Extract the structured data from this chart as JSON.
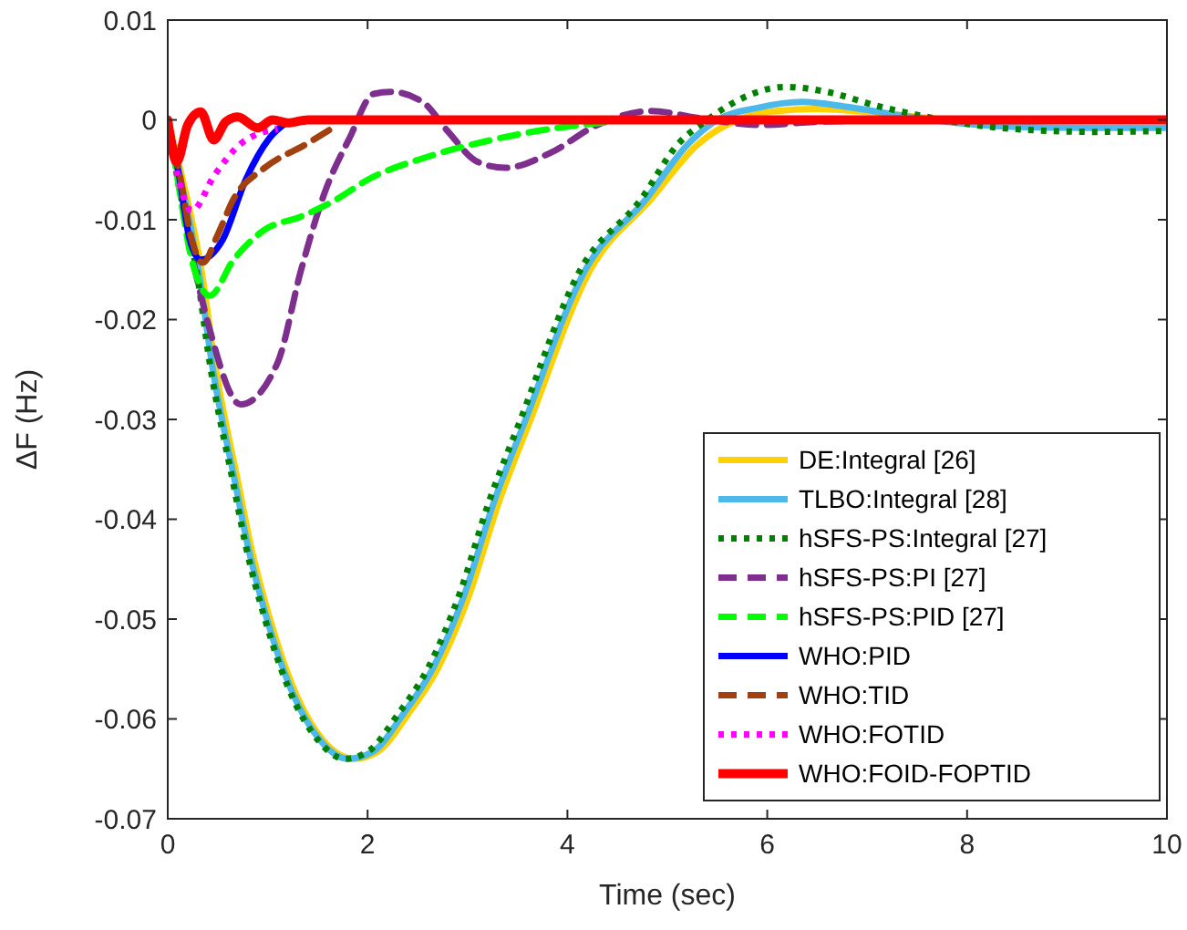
{
  "chart_data": {
    "type": "line",
    "xlabel": "Time (sec)",
    "ylabel": "ΔF (Hz)",
    "xlim": [
      0,
      10
    ],
    "ylim": [
      -0.07,
      0.01
    ],
    "xticks": [
      0,
      2,
      4,
      6,
      8,
      10
    ],
    "yticks": [
      -0.07,
      -0.06,
      -0.05,
      -0.04,
      -0.03,
      -0.02,
      -0.01,
      0,
      0.01
    ],
    "grid": false,
    "legend": "bottom right",
    "marker": "none",
    "series": [
      {
        "name": "DE:Integral [26]",
        "color": "#ffd100",
        "line_style": "solid",
        "x": [
          0,
          0.15,
          0.34,
          0.47,
          0.71,
          0.83,
          1.02,
          1.25,
          1.56,
          1.87,
          2.1,
          2.4,
          2.71,
          3.02,
          3.31,
          3.62,
          4.22,
          4.84,
          5.3,
          5.7,
          6.1,
          6.5,
          7,
          7.5,
          8
        ],
        "values": [
          0,
          -0.006,
          -0.0152,
          -0.0243,
          -0.0366,
          -0.0426,
          -0.0499,
          -0.0567,
          -0.0622,
          -0.064,
          -0.0633,
          -0.0596,
          -0.0548,
          -0.0475,
          -0.0384,
          -0.0303,
          -0.0152,
          -0.0079,
          -0.0025,
          0,
          0.0009,
          0.0011,
          0.0008,
          0.0003,
          -0.0002
        ]
      },
      {
        "name": "TLBO:Integral [28]",
        "color": "#4db8ea",
        "line_style": "solid",
        "x": [
          0,
          0.13,
          0.31,
          0.44,
          0.68,
          0.8,
          0.99,
          1.22,
          1.53,
          1.8,
          2.05,
          2.35,
          2.66,
          2.97,
          3.26,
          3.57,
          4.17,
          4.79,
          5.2,
          5.5,
          5.9,
          6.35,
          6.8,
          7.3,
          7.8,
          8.5,
          9.2,
          10
        ],
        "values": [
          0,
          -0.006,
          -0.0152,
          -0.0243,
          -0.0366,
          -0.0426,
          -0.0499,
          -0.0567,
          -0.0622,
          -0.064,
          -0.0633,
          -0.0596,
          -0.0548,
          -0.0475,
          -0.0384,
          -0.0303,
          -0.0152,
          -0.0079,
          -0.0025,
          0,
          0.0012,
          0.0018,
          0.0013,
          0.0005,
          -0.0002,
          -0.0007,
          -0.0008,
          -0.0008
        ]
      },
      {
        "name": "hSFS-PS:Integral [27]",
        "color": "#008000",
        "line_style": "dotted",
        "x": [
          0,
          0.1,
          0.29,
          0.42,
          0.66,
          0.78,
          0.97,
          1.2,
          1.51,
          1.77,
          2.0,
          2.3,
          2.61,
          2.92,
          3.21,
          3.52,
          4.12,
          4.74,
          5.1,
          5.4,
          5.8,
          6.17,
          6.6,
          7.1,
          7.6,
          8,
          8.6,
          9.3,
          10
        ],
        "values": [
          0,
          -0.006,
          -0.0152,
          -0.0243,
          -0.0366,
          -0.0426,
          -0.0499,
          -0.0567,
          -0.0622,
          -0.064,
          -0.0633,
          -0.0596,
          -0.0548,
          -0.0475,
          -0.0384,
          -0.0303,
          -0.0152,
          -0.0079,
          -0.0025,
          0,
          0.0024,
          0.0033,
          0.0028,
          0.0014,
          0.0003,
          -0.0004,
          -0.001,
          -0.0012,
          -0.0011
        ]
      },
      {
        "name": "hSFS-PS:PI [27]",
        "color": "#7e2f8e",
        "line_style": "dashed",
        "x": [
          0,
          0.1,
          0.24,
          0.42,
          0.73,
          1.1,
          1.33,
          1.57,
          1.82,
          2.06,
          2.24,
          2.55,
          2.8,
          3.1,
          3.38,
          3.83,
          4.3,
          4.84,
          5.3,
          5.93,
          6.5,
          7.5,
          10
        ],
        "values": [
          0,
          -0.005,
          -0.0133,
          -0.021,
          -0.0285,
          -0.0243,
          -0.0152,
          -0.0073,
          -0.0018,
          0.0026,
          0.0028,
          0.0018,
          -0.0011,
          -0.0042,
          -0.0048,
          -0.0033,
          -0.0005,
          0.0009,
          0.0002,
          -0.0005,
          -0.0002,
          0,
          0
        ]
      },
      {
        "name": "hSFS-PS:PID [27]",
        "color": "#00ff00",
        "line_style": "dashed",
        "x": [
          0,
          0.1,
          0.24,
          0.42,
          0.66,
          0.97,
          1.33,
          1.7,
          2.0,
          2.6,
          3.2,
          3.83,
          4.43
        ],
        "values": [
          0,
          -0.006,
          -0.014,
          -0.0176,
          -0.014,
          -0.011,
          -0.0097,
          -0.0079,
          -0.006,
          -0.0037,
          -0.0021,
          -0.0009,
          -0.0002
        ]
      },
      {
        "name": "WHO:PID",
        "color": "#0000ff",
        "line_style": "solid",
        "x": [
          0,
          0.11,
          0.22,
          0.33,
          0.55,
          0.78,
          1.02,
          1.2
        ],
        "values": [
          0,
          -0.0054,
          -0.012,
          -0.014,
          -0.012,
          -0.006,
          -0.0018,
          -0.0002
        ]
      },
      {
        "name": "WHO:TID",
        "color": "#a2400f",
        "line_style": "dashed",
        "x": [
          0,
          0.12,
          0.24,
          0.35,
          0.5,
          0.66,
          0.97,
          1.39,
          1.7
        ],
        "values": [
          0,
          -0.0055,
          -0.012,
          -0.0143,
          -0.0115,
          -0.0079,
          -0.0048,
          -0.0024,
          -0.0005
        ]
      },
      {
        "name": "WHO:FOTID",
        "color": "#ff00ff",
        "line_style": "dotted",
        "x": [
          0,
          0.11,
          0.24,
          0.47,
          0.73,
          1.1
        ],
        "values": [
          0,
          -0.006,
          -0.0091,
          -0.0055,
          -0.0024,
          -0.0009
        ]
      },
      {
        "name": "WHO:FOID-FOPTID",
        "color": "#ff0000",
        "line_style": "solid",
        "x": [
          0,
          0.09,
          0.2,
          0.33,
          0.46,
          0.58,
          0.7,
          0.9,
          1.05,
          1.2,
          1.4,
          10
        ],
        "values": [
          0,
          -0.0042,
          -0.0005,
          0.0008,
          -0.002,
          -0.0002,
          0.0003,
          -0.0008,
          0,
          -0.0003,
          0,
          0
        ]
      }
    ]
  }
}
